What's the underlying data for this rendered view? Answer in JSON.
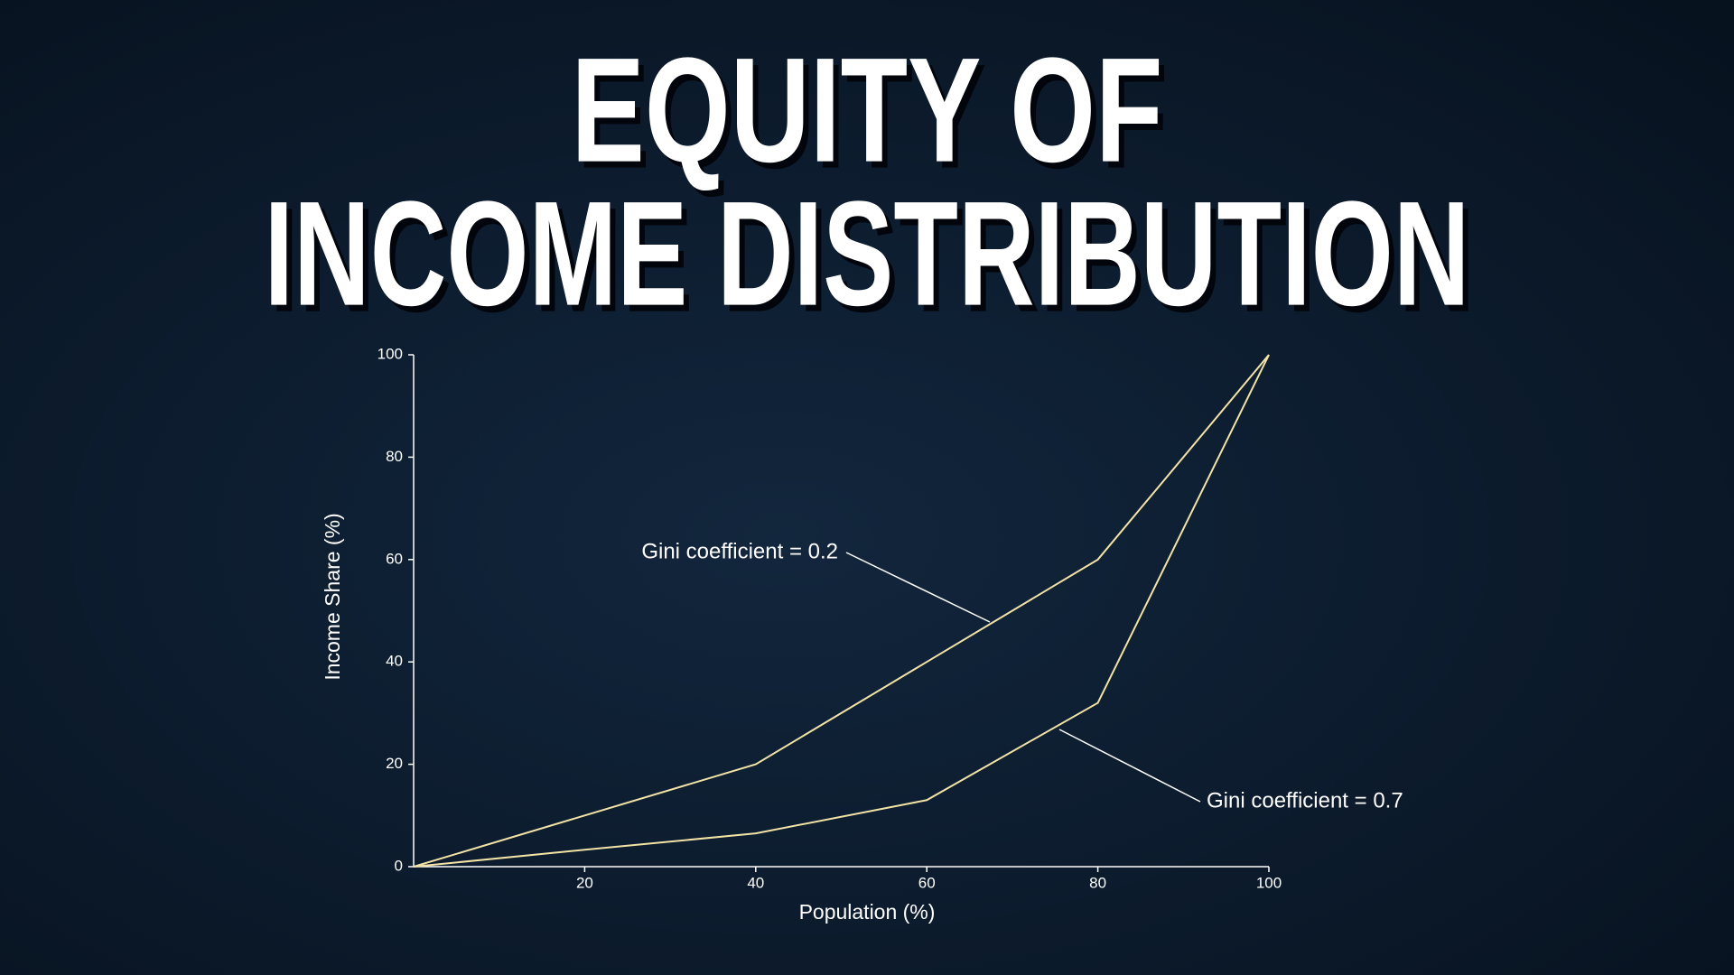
{
  "chart_data": {
    "type": "line",
    "title": [
      "EQUITY OF",
      "INCOME DISTRIBUTION"
    ],
    "x_label": "Population (%)",
    "y_label": "Income Share (%)",
    "x": [
      0,
      20,
      40,
      60,
      80,
      100
    ],
    "series": [
      {
        "name": "Gini coefficient = 0.2",
        "color": "#f3e4a6",
        "values": [
          0,
          10,
          20,
          40,
          60,
          100
        ]
      },
      {
        "name": "Gini coefficient = 0.7",
        "color": "#f3e4a6",
        "values": [
          0,
          3.3,
          6.5,
          13,
          32,
          100
        ]
      }
    ],
    "xlim": [
      0,
      100
    ],
    "ylim": [
      0,
      100
    ],
    "xticks": [
      20,
      40,
      60,
      80,
      100
    ],
    "yticks": [
      0,
      20,
      40,
      60,
      80,
      100
    ],
    "grid": false
  }
}
